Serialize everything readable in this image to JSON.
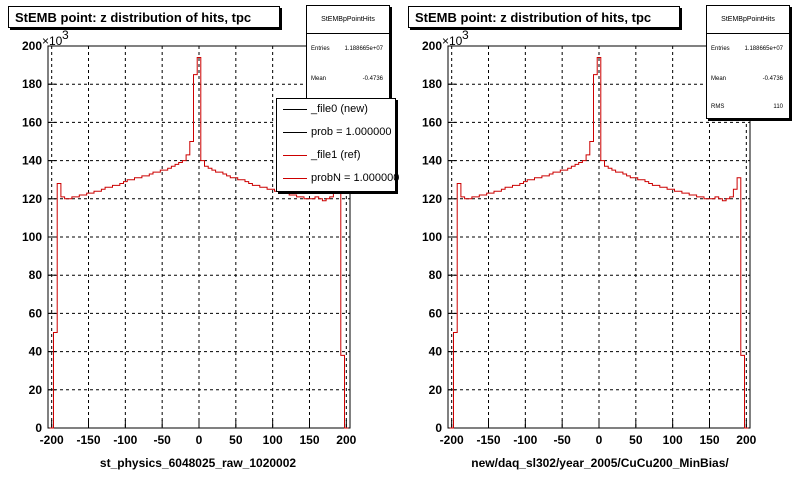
{
  "colors": {
    "ref": "#cc0000",
    "new": "#000000",
    "grid": "#000000"
  },
  "chart_data": [
    {
      "type": "line",
      "title": "StEMB point: z distribution of hits, tpc",
      "xlabel": "st_physics_6048025_raw_1020002",
      "ylabel": "",
      "multiplier": "×10",
      "multiplier_exp": "3",
      "xlim": [
        -205,
        205
      ],
      "ylim": [
        0,
        200
      ],
      "xticks": [
        "-200",
        "-150",
        "-100",
        "-50",
        "0",
        "50",
        "100",
        "150",
        "200"
      ],
      "yticks": [
        "0",
        "20",
        "40",
        "60",
        "80",
        "100",
        "120",
        "140",
        "160",
        "180",
        "200"
      ],
      "grid": true,
      "stats": {
        "name": "StEMBpPointHits",
        "entries_label": "Entries",
        "entries": "1.188665e+07",
        "mean_label": "Mean",
        "mean": "-0.4736"
      },
      "legend": {
        "placement": "top-right",
        "items": [
          {
            "label": "_file0 (new)",
            "color": "#000000"
          },
          {
            "label": "prob = 1.000000",
            "color": "#000000"
          },
          {
            "label": "_file1 (ref)",
            "color": "#cc0000"
          },
          {
            "label": "probN = 1.000000",
            "color": "#cc0000"
          }
        ]
      },
      "series": [
        {
          "name": "_file1 (ref)",
          "color": "#cc0000",
          "x": [
            -200,
            -195,
            -190,
            -185,
            -180,
            -175,
            -170,
            -165,
            -160,
            -155,
            -150,
            -145,
            -140,
            -135,
            -130,
            -125,
            -120,
            -115,
            -110,
            -105,
            -100,
            -95,
            -90,
            -85,
            -80,
            -75,
            -70,
            -65,
            -60,
            -55,
            -50,
            -45,
            -40,
            -35,
            -30,
            -25,
            -20,
            -15,
            -10,
            -5,
            0,
            5,
            10,
            15,
            20,
            25,
            30,
            35,
            40,
            45,
            50,
            55,
            60,
            65,
            70,
            75,
            80,
            85,
            90,
            95,
            100,
            105,
            110,
            115,
            120,
            125,
            130,
            135,
            140,
            145,
            150,
            155,
            160,
            165,
            170,
            175,
            180,
            185,
            190,
            195,
            200
          ],
          "y": [
            0,
            50,
            128,
            121,
            120,
            120,
            121,
            121,
            122,
            122,
            123,
            123,
            124,
            124,
            125,
            126,
            126,
            127,
            127,
            128,
            129,
            130,
            130,
            131,
            131,
            132,
            132,
            133,
            134,
            134,
            135,
            135,
            136,
            137,
            138,
            139,
            140,
            143,
            150,
            185,
            194,
            140,
            137,
            136,
            135,
            134,
            134,
            133,
            132,
            131,
            131,
            130,
            130,
            129,
            128,
            127,
            127,
            126,
            126,
            125,
            125,
            124,
            124,
            123,
            123,
            122,
            122,
            121,
            121,
            120,
            120,
            120,
            121,
            120,
            119,
            120,
            121,
            125,
            131,
            38,
            0
          ]
        }
      ]
    },
    {
      "type": "line",
      "title": "StEMB point: z distribution of hits, tpc",
      "xlabel": "new/daq_sl302/year_2005/CuCu200_MinBias/",
      "ylabel": "",
      "multiplier": "×10",
      "multiplier_exp": "3",
      "xlim": [
        -205,
        205
      ],
      "ylim": [
        0,
        200
      ],
      "xticks": [
        "-200",
        "-150",
        "-100",
        "-50",
        "0",
        "50",
        "100",
        "150",
        "200"
      ],
      "yticks": [
        "0",
        "20",
        "40",
        "60",
        "80",
        "100",
        "120",
        "140",
        "160",
        "180",
        "200"
      ],
      "grid": true,
      "stats": {
        "name": "StEMBpPointHits",
        "entries_label": "Entries",
        "entries": "1.188665e+07",
        "mean_label": "Mean",
        "mean": "-0.4736",
        "rms_label": "RMS",
        "rms": "110"
      },
      "series": [
        {
          "name": "",
          "color": "#cc0000",
          "x": [
            -200,
            -195,
            -190,
            -185,
            -180,
            -175,
            -170,
            -165,
            -160,
            -155,
            -150,
            -145,
            -140,
            -135,
            -130,
            -125,
            -120,
            -115,
            -110,
            -105,
            -100,
            -95,
            -90,
            -85,
            -80,
            -75,
            -70,
            -65,
            -60,
            -55,
            -50,
            -45,
            -40,
            -35,
            -30,
            -25,
            -20,
            -15,
            -10,
            -5,
            0,
            5,
            10,
            15,
            20,
            25,
            30,
            35,
            40,
            45,
            50,
            55,
            60,
            65,
            70,
            75,
            80,
            85,
            90,
            95,
            100,
            105,
            110,
            115,
            120,
            125,
            130,
            135,
            140,
            145,
            150,
            155,
            160,
            165,
            170,
            175,
            180,
            185,
            190,
            195,
            200
          ],
          "y": [
            0,
            50,
            128,
            121,
            120,
            120,
            121,
            121,
            122,
            122,
            123,
            123,
            124,
            124,
            125,
            126,
            126,
            127,
            127,
            128,
            129,
            130,
            130,
            131,
            131,
            132,
            132,
            133,
            134,
            134,
            135,
            135,
            136,
            137,
            138,
            139,
            140,
            143,
            150,
            185,
            194,
            140,
            137,
            136,
            135,
            134,
            134,
            133,
            132,
            131,
            131,
            130,
            130,
            129,
            128,
            127,
            127,
            126,
            126,
            125,
            125,
            124,
            124,
            123,
            123,
            122,
            122,
            121,
            121,
            120,
            120,
            120,
            121,
            120,
            119,
            120,
            121,
            125,
            131,
            38,
            0
          ]
        }
      ]
    }
  ]
}
